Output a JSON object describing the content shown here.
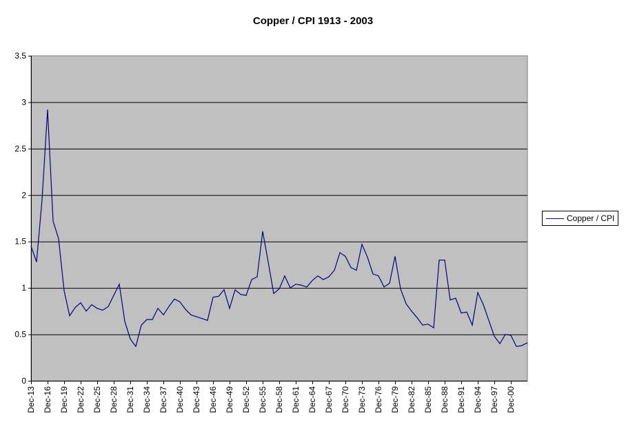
{
  "chart_data": {
    "type": "line",
    "title": "Copper / CPI 1913 - 2003",
    "xlabel": "",
    "ylabel": "",
    "ylim": [
      0,
      3.5
    ],
    "yticks": [
      "0",
      "0.5",
      "1",
      "1.5",
      "2",
      "2.5",
      "3",
      "3.5"
    ],
    "grid": true,
    "legend_position": "right",
    "plot_background": "#c0c0c0",
    "line_color": "#000080",
    "x_tick_labels": [
      "Dec-13",
      "Dec-16",
      "Dec-19",
      "Dec-22",
      "Dec-25",
      "Dec-28",
      "Dec-31",
      "Dec-34",
      "Dec-37",
      "Dec-40",
      "Dec-43",
      "Dec-46",
      "Dec-49",
      "Dec-52",
      "Dec-55",
      "Dec-58",
      "Dec-61",
      "Dec-64",
      "Dec-67",
      "Dec-70",
      "Dec-73",
      "Dec-76",
      "Dec-79",
      "Dec-82",
      "Dec-85",
      "Dec-88",
      "Dec-91",
      "Dec-94",
      "Dec-97",
      "Dec-00"
    ],
    "x": [
      1913,
      1914,
      1915,
      1916,
      1917,
      1918,
      1919,
      1920,
      1921,
      1922,
      1923,
      1924,
      1925,
      1926,
      1927,
      1928,
      1929,
      1930,
      1931,
      1932,
      1933,
      1934,
      1935,
      1936,
      1937,
      1938,
      1939,
      1940,
      1941,
      1942,
      1943,
      1944,
      1945,
      1946,
      1947,
      1948,
      1949,
      1950,
      1951,
      1952,
      1953,
      1954,
      1955,
      1956,
      1957,
      1958,
      1959,
      1960,
      1961,
      1962,
      1963,
      1964,
      1965,
      1966,
      1967,
      1968,
      1969,
      1970,
      1971,
      1972,
      1973,
      1974,
      1975,
      1976,
      1977,
      1978,
      1979,
      1980,
      1981,
      1982,
      1983,
      1984,
      1985,
      1986,
      1987,
      1988,
      1989,
      1990,
      1991,
      1992,
      1993,
      1994,
      1995,
      1996,
      1997,
      1998,
      1999,
      2000,
      2001,
      2002,
      2003
    ],
    "series": [
      {
        "name": "Copper / CPI",
        "values": [
          1.45,
          1.28,
          1.95,
          2.92,
          1.72,
          1.53,
          0.97,
          0.7,
          0.79,
          0.84,
          0.75,
          0.82,
          0.78,
          0.76,
          0.8,
          0.92,
          1.04,
          0.64,
          0.45,
          0.37,
          0.6,
          0.66,
          0.66,
          0.78,
          0.71,
          0.8,
          0.88,
          0.85,
          0.77,
          0.71,
          0.69,
          0.67,
          0.65,
          0.9,
          0.91,
          0.98,
          0.78,
          0.98,
          0.93,
          0.92,
          1.09,
          1.12,
          1.61,
          1.28,
          0.94,
          0.99,
          1.13,
          1.0,
          1.04,
          1.03,
          1.01,
          1.08,
          1.13,
          1.09,
          1.12,
          1.19,
          1.38,
          1.34,
          1.22,
          1.19,
          1.47,
          1.33,
          1.15,
          1.13,
          1.01,
          1.05,
          1.34,
          0.99,
          0.83,
          0.75,
          0.68,
          0.6,
          0.61,
          0.57,
          1.3,
          1.3,
          0.87,
          0.89,
          0.73,
          0.74,
          0.6,
          0.95,
          0.82,
          0.65,
          0.48,
          0.4,
          0.5,
          0.49,
          0.37,
          0.38,
          0.41
        ]
      }
    ]
  },
  "legend": {
    "label": "Copper / CPI"
  }
}
